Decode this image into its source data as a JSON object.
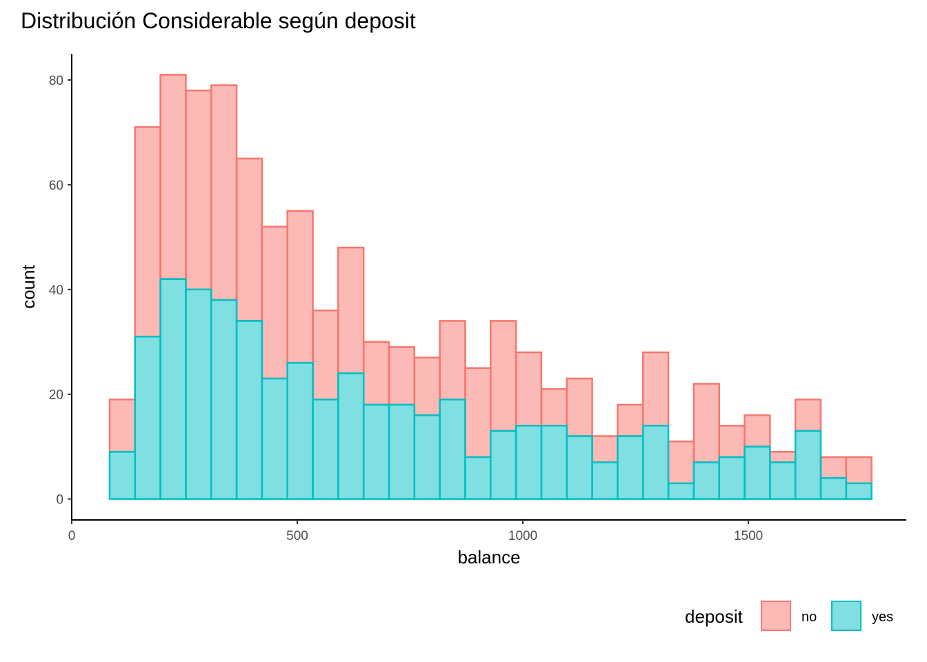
{
  "chart_data": {
    "type": "bar",
    "subtype": "stacked-histogram",
    "title": "Distribución Considerable según deposit",
    "xlabel": "balance",
    "ylabel": "count",
    "xlim": [
      0,
      1850
    ],
    "ylim": [
      -4,
      85
    ],
    "x_ticks": [
      0,
      500,
      1000,
      1500
    ],
    "y_ticks": [
      0,
      20,
      40,
      60,
      80
    ],
    "grid": false,
    "legend": {
      "title": "deposit",
      "position": "bottom-right"
    },
    "bins": {
      "start": 84,
      "width": 56.3,
      "totals": [
        19,
        71,
        81,
        78,
        79,
        65,
        52,
        55,
        36,
        48,
        30,
        29,
        27,
        34,
        25,
        34,
        28,
        21,
        23,
        12,
        18,
        28,
        11,
        22,
        14,
        16,
        9,
        19,
        8,
        8
      ]
    },
    "series": [
      {
        "name": "no",
        "fill": "#F8766D",
        "values": [
          10,
          40,
          39,
          38,
          41,
          31,
          29,
          29,
          17,
          24,
          12,
          11,
          11,
          15,
          17,
          21,
          14,
          7,
          11,
          5,
          6,
          14,
          8,
          15,
          6,
          6,
          2,
          6,
          4,
          5
        ]
      },
      {
        "name": "yes",
        "fill": "#00BFC4",
        "values": [
          9,
          31,
          42,
          40,
          38,
          34,
          23,
          26,
          19,
          24,
          18,
          18,
          16,
          19,
          8,
          13,
          14,
          14,
          12,
          7,
          12,
          14,
          3,
          7,
          8,
          10,
          7,
          13,
          4,
          3
        ]
      }
    ]
  }
}
